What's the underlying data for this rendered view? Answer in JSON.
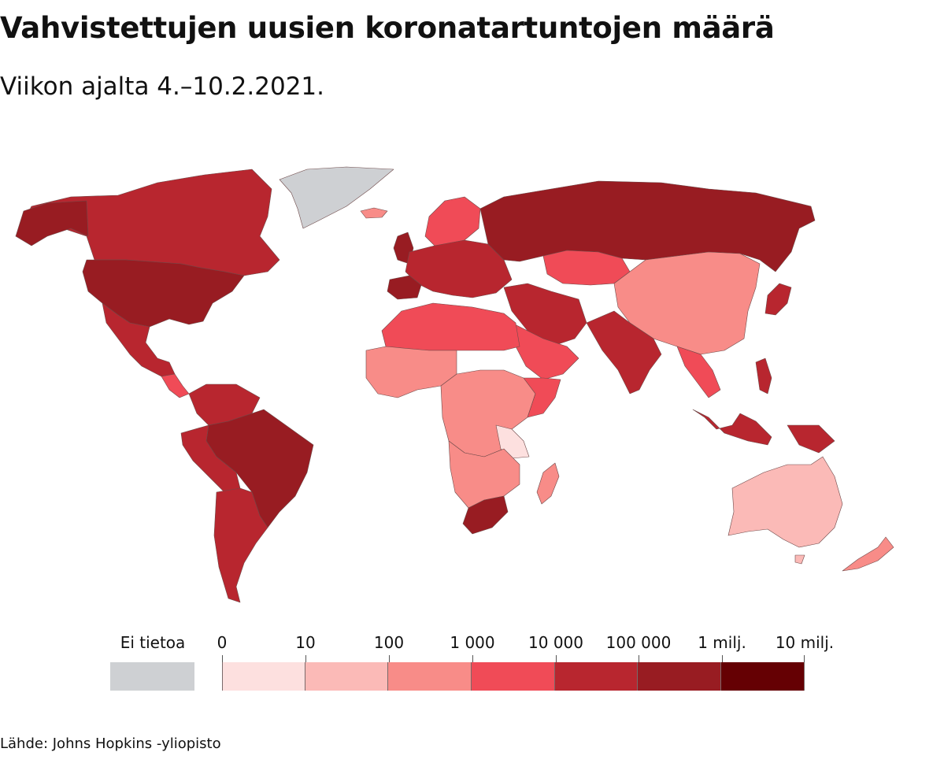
{
  "title": "Vahvistettujen uusien koronatartuntojen määrä",
  "subtitle": "Viikon ajalta 4.–10.2.2021.",
  "source": "Lähde: Johns Hopkins -yliopisto",
  "legend": {
    "no_data_label": "Ei tietoa",
    "no_data_color": "#ced0d3",
    "ticks": [
      "0",
      "10",
      "100",
      "1 000",
      "10 000",
      "100 000",
      "1 milj.",
      "10 milj."
    ],
    "bins": [
      {
        "from": 0,
        "to": 10,
        "color": "#fde0df"
      },
      {
        "from": 10,
        "to": 100,
        "color": "#fbbab7"
      },
      {
        "from": 100,
        "to": 1000,
        "color": "#f88c88"
      },
      {
        "from": 1000,
        "to": 10000,
        "color": "#f04b57"
      },
      {
        "from": 10000,
        "to": 100000,
        "color": "#b8262f"
      },
      {
        "from": 100000,
        "to": 1000000,
        "color": "#981c22"
      },
      {
        "from": 1000000,
        "to": 10000000,
        "color": "#650003"
      }
    ]
  },
  "map_colors": {
    "greenland": "#ced0d3",
    "canada": "#b8262f",
    "usa": "#981c22",
    "mexico": "#b8262f",
    "brazil": "#981c22",
    "south_america_other": "#b8262f",
    "russia": "#981c22",
    "europe": "#b8262f",
    "china": "#f88c88",
    "india": "#b8262f",
    "north_africa": "#f04b57",
    "central_africa": "#f88c88",
    "south_africa": "#981c22",
    "australia": "#fbbab7",
    "indonesia": "#b8262f",
    "middle_east": "#b8262f",
    "iceland": "#f88c88",
    "kazakhstan": "#f04b57",
    "japan": "#b8262f",
    "new_zealand": "#f88c88",
    "madagascar": "#f88c88",
    "argentina": "#b8262f",
    "east_africa_light": "#fde0df"
  }
}
